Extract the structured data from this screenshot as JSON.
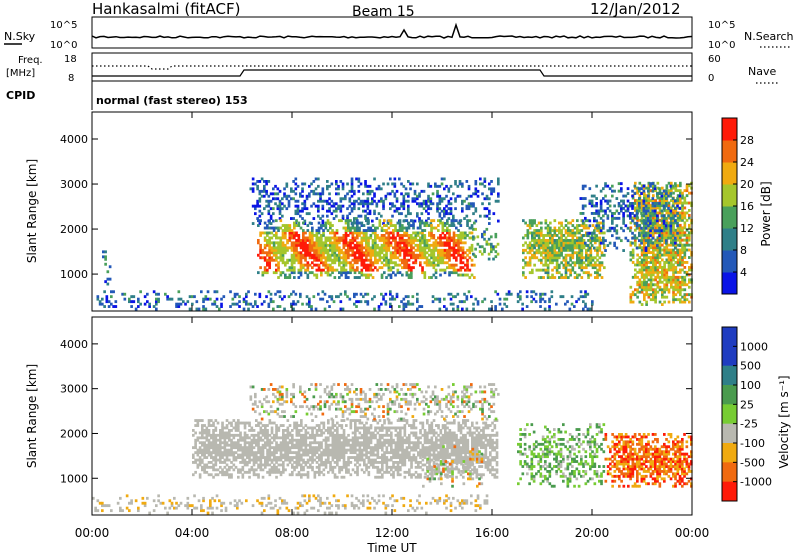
{
  "header": {
    "radar": "Hankasalmi (fitACF)",
    "beam": "Beam 15",
    "date": "12/Jan/2012"
  },
  "status": {
    "nsky_label": "N.Sky",
    "nsky_ticks": [
      "10^5",
      "10^0"
    ],
    "nsearch_label": "N.Search",
    "nsearch_ticks": [
      "10^5",
      "10^0"
    ],
    "freq_label": "Freq.",
    "freq_unit": "[MHz]",
    "freq_ticks": [
      "18",
      "8"
    ],
    "nave_label": "Nave",
    "nave_ticks": [
      "60",
      "0"
    ],
    "cpid_label": "CPID",
    "cpid_text": "normal (fast stereo) 153"
  },
  "chart_data": [
    {
      "type": "heatmap",
      "name": "power",
      "ylabel": "Slant Range [km]",
      "ylim": [
        180,
        4600
      ],
      "yticks": [
        1000,
        2000,
        3000,
        4000
      ],
      "xlim": [
        0,
        24
      ],
      "colorbar": {
        "label": "Power [dB]",
        "range": [
          0,
          32
        ],
        "ticks": [
          "4",
          "8",
          "12",
          "16",
          "20",
          "24",
          "28"
        ],
        "tick_values": [
          4,
          8,
          12,
          16,
          20,
          24,
          28
        ],
        "colors": [
          "#0a14e6",
          "#2358b8",
          "#2f7f88",
          "#49a05b",
          "#a5c62c",
          "#f0aa10",
          "#f06a10",
          "#ff1a08"
        ]
      },
      "regions": [
        {
          "t": [
            0,
            16.0
          ],
          "r": [
            200,
            600
          ],
          "level": 0.25
        },
        {
          "t": [
            0.4,
            0.7
          ],
          "r": [
            700,
            1500
          ],
          "level": 0.3
        },
        {
          "t": [
            6.3,
            16.2
          ],
          "r": [
            2100,
            3100
          ],
          "level": 0.2
        },
        {
          "t": [
            6.6,
            15.3
          ],
          "r": [
            900,
            2200
          ],
          "level": 0.8
        },
        {
          "t": [
            15.2,
            16.2
          ],
          "r": [
            1200,
            2000
          ],
          "level": 0.4
        },
        {
          "t": [
            16.0,
            20.0
          ],
          "r": [
            200,
            600
          ],
          "level": 0.25
        },
        {
          "t": [
            17.2,
            20.5
          ],
          "r": [
            900,
            2200
          ],
          "level": 0.55
        },
        {
          "t": [
            21.5,
            24.0
          ],
          "r": [
            300,
            3000
          ],
          "level": 0.6
        },
        {
          "t": [
            19.5,
            23.5
          ],
          "r": [
            1500,
            3000
          ],
          "level": 0.25
        }
      ]
    },
    {
      "type": "heatmap",
      "name": "velocity",
      "ylabel": "Slant Range [km]",
      "ylim": [
        180,
        4600
      ],
      "yticks": [
        1000,
        2000,
        3000,
        4000
      ],
      "xlim": [
        0,
        24
      ],
      "xticks": [
        "00:00",
        "04:00",
        "08:00",
        "12:00",
        "16:00",
        "20:00",
        "00:00"
      ],
      "xtick_values": [
        0,
        4,
        8,
        12,
        16,
        20,
        24
      ],
      "xlabel": "Time UT",
      "colorbar": {
        "label": "Velocity [m s⁻¹]",
        "ticks": [
          "1000",
          "500",
          "100",
          "25",
          "-25",
          "-100",
          "-500",
          "-1000"
        ],
        "colors": [
          "#1f3cc0",
          "#2f7f88",
          "#4a9b4e",
          "#77cc33",
          "#b8b8b0",
          "#f0aa10",
          "#f06a10",
          "#ff1a08"
        ]
      },
      "regions": [
        {
          "t": [
            0,
            16.0
          ],
          "r": [
            200,
            600
          ],
          "level": 0.45
        },
        {
          "t": [
            4.0,
            16.2
          ],
          "r": [
            1000,
            2300
          ],
          "level": 0.55
        },
        {
          "t": [
            6.3,
            16.2
          ],
          "r": [
            2300,
            3100
          ],
          "level": 0.35
        },
        {
          "t": [
            13.2,
            15.6
          ],
          "r": [
            800,
            1700
          ],
          "level": 0.35
        },
        {
          "t": [
            17.0,
            20.5
          ],
          "r": [
            800,
            2200
          ],
          "level": 0.4
        },
        {
          "t": [
            20.5,
            24.0
          ],
          "r": [
            800,
            2000
          ],
          "level": 0.65
        }
      ]
    }
  ]
}
